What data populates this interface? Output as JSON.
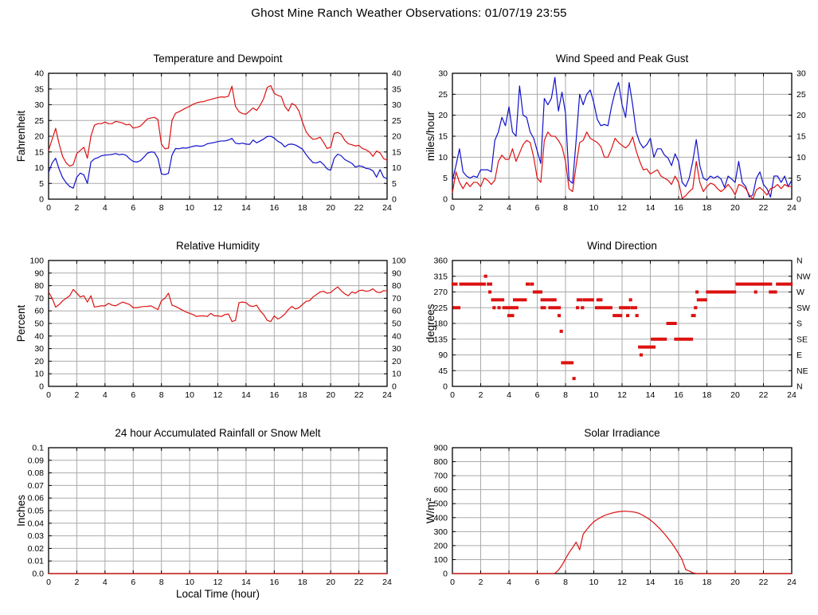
{
  "page_title": "Ghost Mine Ranch Weather Observations: 01/07/19 23:55",
  "colors": {
    "series_red": "#dd1111",
    "series_blue": "#1111cc",
    "grid": "#aaaaaa",
    "axis": "#000000"
  },
  "chart_data": [
    {
      "type": "line",
      "title": "Temperature and Dewpoint",
      "ylabel": "Fahrenheit",
      "xlim": [
        0,
        24
      ],
      "xtick": 2,
      "ylim": [
        0,
        40
      ],
      "ytick": 5,
      "right_axis": "mirror",
      "series": [
        {
          "name": "temperature",
          "color": "#dd1111",
          "x_start": 0,
          "x_step": 0.25,
          "values": [
            15.5,
            19,
            22.5,
            17.5,
            13.5,
            11.5,
            10.5,
            11,
            14.5,
            15.5,
            16.5,
            13,
            20,
            23.5,
            24,
            24,
            24.5,
            24,
            24,
            24.7,
            24.5,
            24.2,
            23.6,
            23.8,
            22.6,
            22.8,
            23.2,
            24.3,
            25.5,
            25.8,
            26,
            25.3,
            17.5,
            16,
            16.2,
            25,
            27.3,
            27.8,
            28.4,
            29,
            29.5,
            30.2,
            30.6,
            30.9,
            31,
            31.4,
            31.7,
            32,
            32.3,
            32.5,
            32.4,
            32.7,
            35.9,
            29.5,
            27.8,
            27.2,
            27,
            28,
            29,
            28.2,
            29.8,
            32,
            35.5,
            36.1,
            33.6,
            33,
            32.6,
            29.5,
            28,
            30.4,
            29.8,
            28,
            24.5,
            21.5,
            20,
            19,
            19.2,
            19.7,
            18,
            16.1,
            16.5,
            20.9,
            21.2,
            20.6,
            18.7,
            17.6,
            17.3,
            16.9,
            17.1,
            16.1,
            15.7,
            15,
            13.6,
            15.3,
            14.7,
            12.9,
            12.4
          ]
        },
        {
          "name": "dewpoint",
          "color": "#1111cc",
          "x_start": 0,
          "x_step": 0.25,
          "values": [
            8.5,
            11.5,
            13,
            9.5,
            6.8,
            5.2,
            4,
            3.5,
            7,
            8.3,
            7.7,
            5,
            11.8,
            12.8,
            13.2,
            13.8,
            14,
            14.1,
            14.2,
            14.5,
            14.1,
            14.3,
            13.9,
            12.8,
            12,
            11.8,
            12.2,
            13.3,
            14.6,
            15,
            14.9,
            13,
            8,
            7.8,
            8.2,
            14,
            16.1,
            16,
            16.3,
            16.2,
            16.5,
            16.8,
            17,
            16.8,
            17,
            17.6,
            17.8,
            18,
            18.3,
            18.5,
            18.5,
            18.8,
            19.3,
            17.8,
            17.6,
            17.8,
            17.5,
            17.4,
            18.8,
            17.9,
            18.5,
            19.1,
            19.9,
            20,
            19.4,
            18.4,
            17.8,
            16.6,
            17.4,
            17.5,
            17.2,
            16.6,
            15.9,
            14.2,
            12.8,
            11.6,
            11.5,
            12,
            11,
            9.6,
            9.2,
            13,
            14.3,
            13.8,
            12.6,
            12,
            11.4,
            10.2,
            10.6,
            10.4,
            9.8,
            9.6,
            9,
            7,
            9.4,
            7,
            6.5
          ]
        }
      ]
    },
    {
      "type": "line",
      "title": "Wind Speed and Peak Gust",
      "ylabel": "miles/hour",
      "xlim": [
        0,
        24
      ],
      "xtick": 2,
      "ylim": [
        0,
        30
      ],
      "ytick": 5,
      "right_axis": "mirror",
      "series": [
        {
          "name": "peak-gust",
          "color": "#1111cc",
          "x_start": 0,
          "x_step": 0.25,
          "values": [
            4.5,
            8,
            12,
            6.5,
            5.5,
            5,
            5.5,
            5.2,
            7,
            7,
            7,
            6.5,
            14,
            16,
            19.5,
            17.5,
            22,
            16,
            15,
            27,
            20,
            19.5,
            16,
            14.5,
            11.5,
            8.5,
            24,
            22.5,
            24,
            29,
            21,
            25.5,
            20.5,
            4.5,
            3.8,
            14,
            25,
            22.5,
            25,
            26,
            23,
            19,
            17.5,
            17.8,
            17.5,
            22,
            25.5,
            27.8,
            22.5,
            19.5,
            27.8,
            22.5,
            16,
            13.5,
            12.2,
            13,
            14.5,
            10,
            12,
            12,
            10.5,
            9.8,
            8,
            10.8,
            9,
            4,
            3,
            5,
            9,
            14.2,
            8,
            5,
            4.5,
            5.5,
            5,
            5.5,
            4.8,
            2.8,
            5.5,
            4.8,
            4,
            9,
            4,
            3,
            0.5,
            1,
            5,
            6.5,
            3.5,
            2.5,
            0.5,
            5.5,
            5.5,
            4,
            5.5,
            3,
            4.5
          ]
        },
        {
          "name": "wind-speed",
          "color": "#dd1111",
          "x_start": 0,
          "x_step": 0.25,
          "values": [
            1.5,
            6.5,
            4,
            2.5,
            4,
            3,
            4,
            4,
            3,
            5,
            4.5,
            3.5,
            4.5,
            9,
            10.5,
            9.5,
            9.5,
            12,
            9,
            11,
            13,
            14,
            13.5,
            10,
            5,
            4,
            14,
            16,
            15,
            15,
            14,
            12.5,
            9,
            2.5,
            1.8,
            8,
            13.5,
            14,
            16,
            14.5,
            14,
            13.5,
            12.5,
            10,
            10,
            12,
            14.5,
            13.5,
            12.8,
            12.2,
            13,
            14.8,
            11.5,
            9,
            7,
            7.2,
            6,
            6.5,
            7,
            5.5,
            5,
            4.5,
            3.5,
            5.5,
            4,
            0.2,
            0.8,
            1.8,
            2.5,
            9,
            4,
            1.8,
            3,
            3.8,
            3.5,
            2.5,
            1.8,
            2.5,
            3.5,
            2.5,
            1,
            3.5,
            3.2,
            2.5,
            1,
            0,
            2.2,
            2.8,
            2,
            1,
            2.5,
            2.8,
            3.5,
            2.5,
            3.5,
            3,
            3
          ]
        }
      ]
    },
    {
      "type": "line",
      "title": "Relative Humidity",
      "ylabel": "Percent",
      "xlim": [
        0,
        24
      ],
      "xtick": 2,
      "ylim": [
        0,
        100
      ],
      "ytick": 10,
      "right_axis": "mirror",
      "series": [
        {
          "name": "relative-humidity",
          "color": "#dd1111",
          "x_start": 0,
          "x_step": 0.25,
          "values": [
            75,
            70,
            63,
            65,
            68,
            70,
            72,
            77,
            74,
            71,
            72,
            67,
            72,
            63,
            63.5,
            64,
            64,
            66,
            64.5,
            64,
            65.5,
            67,
            66,
            65,
            62.5,
            62.5,
            63,
            63.5,
            63.5,
            64,
            62.5,
            61,
            68,
            70,
            74,
            64.5,
            63.5,
            62,
            60.5,
            59,
            58,
            57,
            55.5,
            56,
            56,
            55.5,
            58,
            56,
            56,
            55.5,
            57,
            57.5,
            51.5,
            52.5,
            66.5,
            67,
            66.5,
            64,
            63.5,
            64.5,
            60,
            57,
            52.5,
            51.5,
            56,
            53.5,
            55,
            57.5,
            61,
            63.5,
            61.5,
            62.5,
            65,
            67.5,
            68,
            71,
            73,
            75,
            75.5,
            74,
            74.5,
            77,
            79,
            76,
            73.5,
            72,
            75,
            74,
            76,
            76.5,
            75.5,
            76,
            77.5,
            75,
            74.5,
            76,
            76
          ]
        }
      ]
    },
    {
      "type": "scatter-segments",
      "title": "Wind Direction",
      "ylabel": "degrees",
      "xlim": [
        0,
        24
      ],
      "xtick": 2,
      "ylim": [
        0,
        360
      ],
      "ytick": 45,
      "right_axis": "labels",
      "right_axis_labels_bottom_to_top": [
        "N",
        "NE",
        "E",
        "SE",
        "S",
        "SW",
        "W",
        "NW",
        "N"
      ],
      "series": [
        {
          "name": "wind-direction",
          "color": "#dd1111",
          "segments": [
            [
              0,
              0.3,
              292.5
            ],
            [
              0.55,
              2.3,
              292.5
            ],
            [
              2.5,
              2.75,
              292.5
            ],
            [
              5.25,
              5.4,
              292.5
            ],
            [
              5.55,
              5.7,
              292.5
            ],
            [
              20.1,
              22.55,
              292.5
            ],
            [
              22.95,
              24,
              292.5
            ],
            [
              2.3,
              2.4,
              315
            ],
            [
              2.6,
              2.7,
              270
            ],
            [
              5.75,
              6.3,
              270
            ],
            [
              17.25,
              17.35,
              270
            ],
            [
              18,
              20,
              270
            ],
            [
              21.4,
              21.5,
              270
            ],
            [
              22.45,
              22.9,
              270
            ],
            [
              2.8,
              3.6,
              247.5
            ],
            [
              4.35,
              5.2,
              247.5
            ],
            [
              6.3,
              7.1,
              247.5
            ],
            [
              7.2,
              7.3,
              247.5
            ],
            [
              8.85,
              9.15,
              247.5
            ],
            [
              9.3,
              9.95,
              247.5
            ],
            [
              10.25,
              10.35,
              247.5
            ],
            [
              10.45,
              10.55,
              247.5
            ],
            [
              12.55,
              12.65,
              247.5
            ],
            [
              17.35,
              17.95,
              247.5
            ],
            [
              0.1,
              0.5,
              225
            ],
            [
              2.9,
              3,
              225
            ],
            [
              3.25,
              3.35,
              225
            ],
            [
              3.6,
              4.6,
              225
            ],
            [
              6.3,
              6.55,
              225
            ],
            [
              6.85,
              7.6,
              225
            ],
            [
              8.8,
              8.9,
              225
            ],
            [
              9.15,
              9.25,
              225
            ],
            [
              10.15,
              11.25,
              225
            ],
            [
              11.85,
              12.5,
              225
            ],
            [
              12.65,
              13,
              225
            ],
            [
              17.15,
              17.25,
              225
            ],
            [
              3.95,
              4.3,
              202.5
            ],
            [
              7.5,
              7.6,
              202.5
            ],
            [
              11.4,
              11.95,
              202.5
            ],
            [
              12.35,
              12.45,
              202.5
            ],
            [
              13,
              13.1,
              202.5
            ],
            [
              16.95,
              17.15,
              202.5
            ],
            [
              15.2,
              15.8,
              180
            ],
            [
              7.65,
              7.75,
              157.5
            ],
            [
              14.1,
              14.6,
              135
            ],
            [
              14.7,
              15.1,
              135
            ],
            [
              15.75,
              16.95,
              135
            ],
            [
              13.2,
              14.3,
              112.5
            ],
            [
              13.3,
              13.4,
              90
            ],
            [
              7.75,
              8.5,
              67.5
            ],
            [
              8.55,
              8.65,
              22.5
            ]
          ]
        }
      ]
    },
    {
      "type": "line",
      "title": "24 hour Accumulated Rainfall or Snow Melt",
      "ylabel": "Inches",
      "xlabel": "Local Time (hour)",
      "xlim": [
        0,
        24
      ],
      "xtick": 2,
      "ylim": [
        0,
        0.1
      ],
      "ytick": 0.01,
      "ytick_labels": [
        "0.0",
        "0.01",
        "0.02",
        "0.03",
        "0.04",
        "0.05",
        "0.06",
        "0.07",
        "0.08",
        "0.09",
        "0.1"
      ],
      "right_axis": "none",
      "series": [
        {
          "name": "rainfall",
          "color": "#dd1111",
          "x_start": 0,
          "x_step": 24,
          "values": [
            0,
            0
          ]
        }
      ]
    },
    {
      "type": "line",
      "title": "Solar Irradiance",
      "ylabel": "W/m²",
      "xlim": [
        0,
        24
      ],
      "xtick": 2,
      "ylim": [
        0,
        900
      ],
      "ytick": 100,
      "right_axis": "none",
      "series": [
        {
          "name": "solar-irradiance",
          "color": "#dd1111",
          "x_start": 0,
          "x_step": 0.25,
          "values": [
            0,
            0,
            0,
            0,
            0,
            0,
            0,
            0,
            0,
            0,
            0,
            0,
            0,
            0,
            0,
            0,
            0,
            0,
            0,
            0,
            0,
            0,
            0,
            0,
            0,
            0,
            0,
            0,
            0,
            2,
            25,
            60,
            105,
            150,
            185,
            225,
            170,
            282,
            315,
            345,
            370,
            388,
            402,
            415,
            424,
            432,
            438,
            442,
            445,
            446,
            444,
            441,
            437,
            428,
            415,
            400,
            383,
            362,
            338,
            312,
            284,
            252,
            220,
            183,
            143,
            100,
            28,
            18,
            6,
            0,
            0,
            0,
            0,
            0,
            0,
            0,
            0,
            0,
            0,
            0,
            0,
            0,
            0,
            0,
            0,
            0,
            0,
            0,
            0,
            0,
            0,
            0,
            0,
            0,
            0,
            0,
            0
          ]
        }
      ]
    }
  ]
}
